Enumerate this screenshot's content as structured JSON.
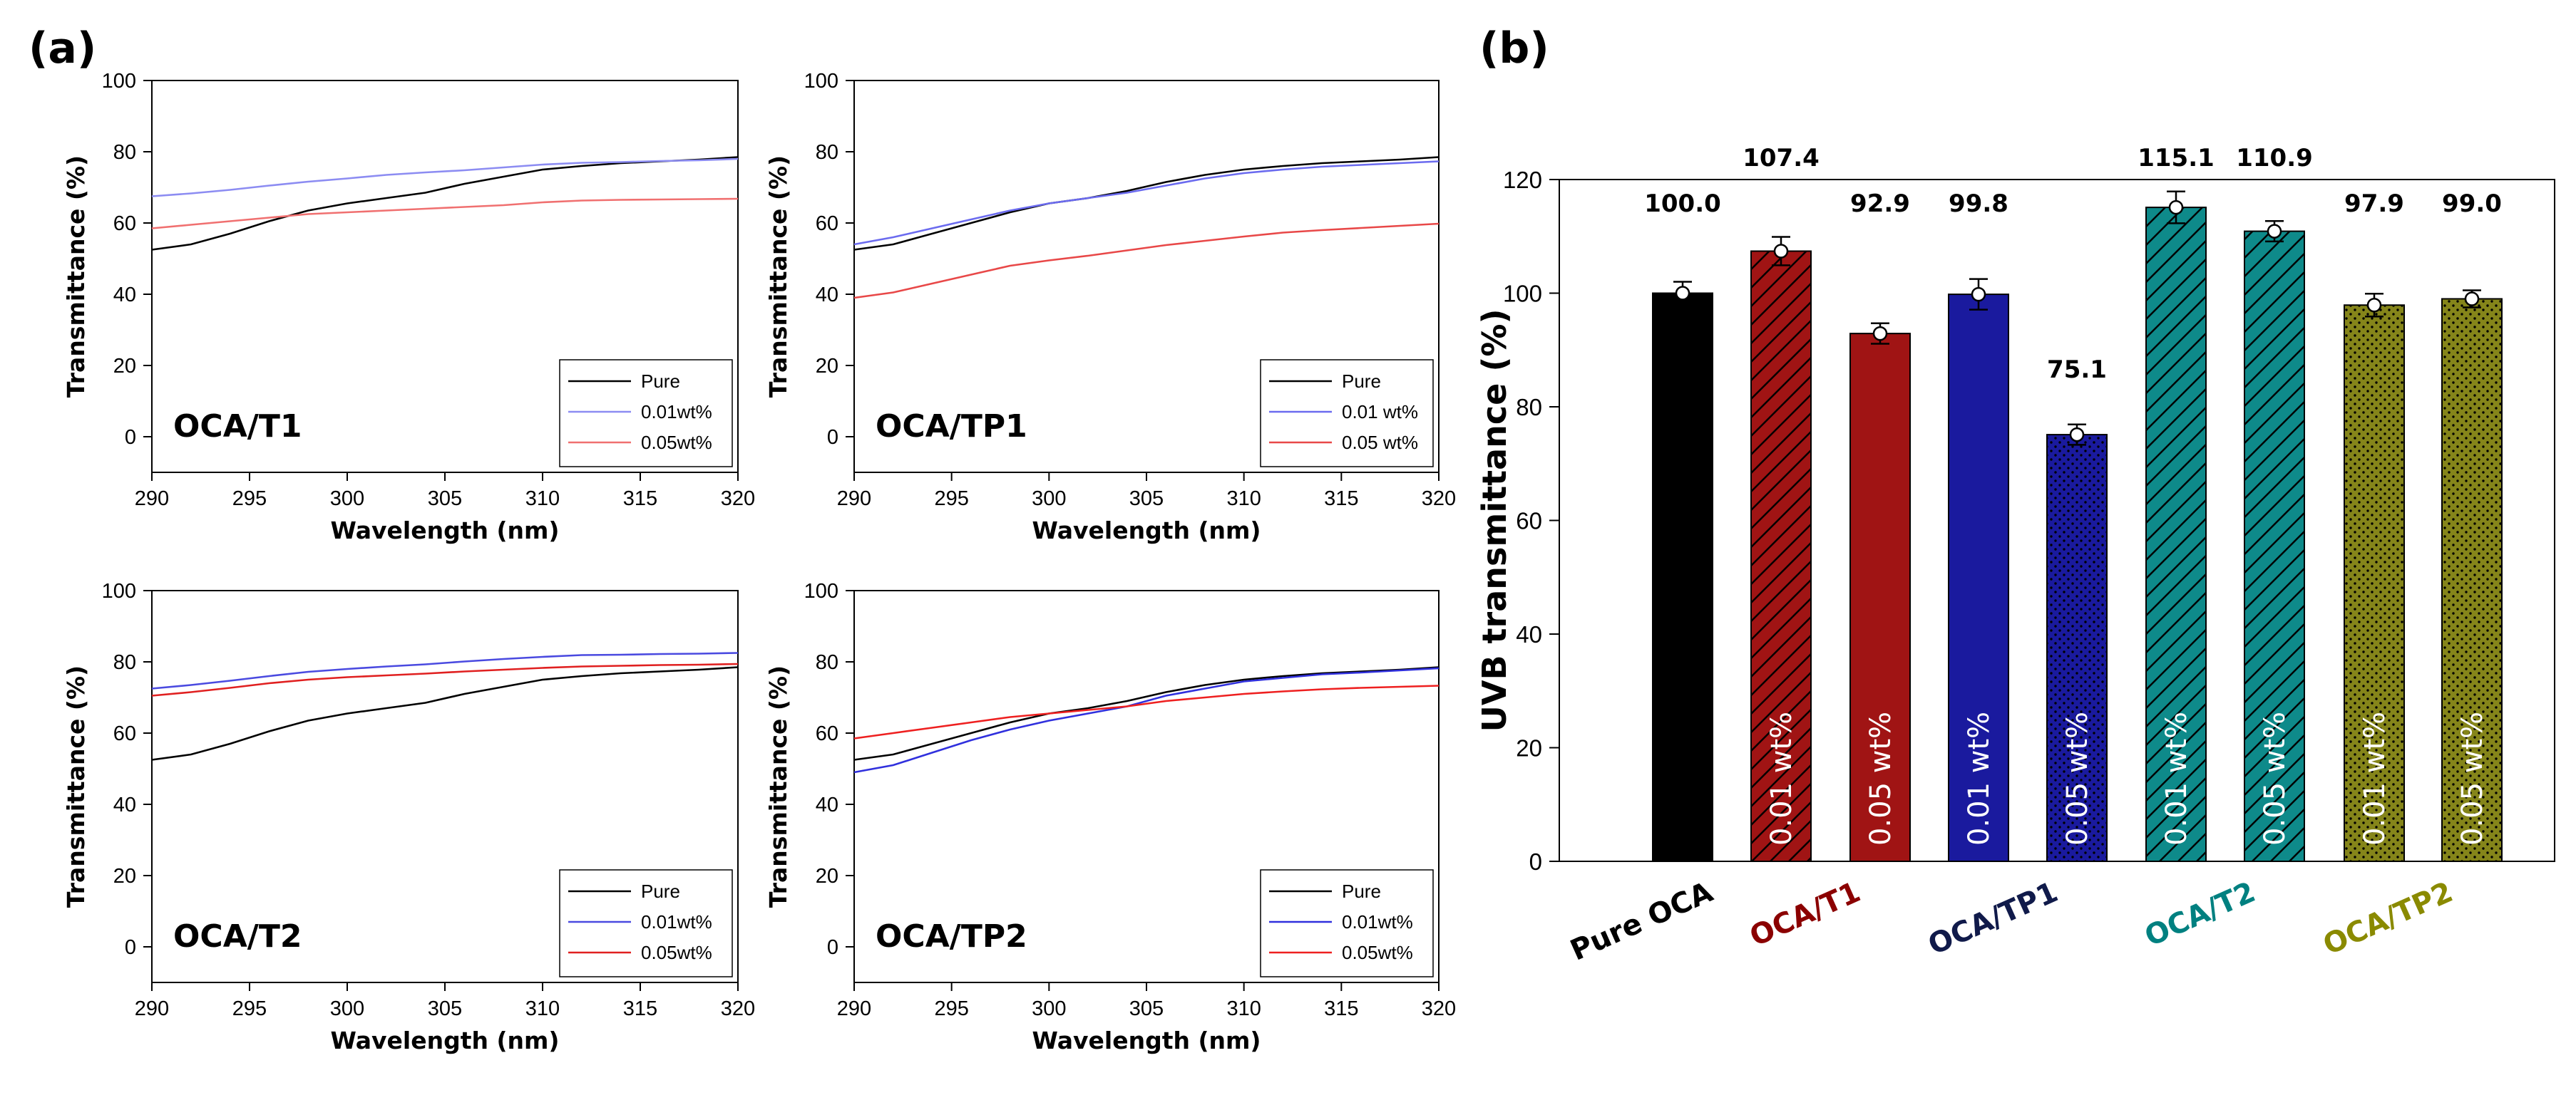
{
  "figure": {
    "panel_a_label": "(a)",
    "panel_b_label": "(b)"
  },
  "chart_data": [
    {
      "type": "line",
      "panel": "a1",
      "sample_label": "OCA/T1",
      "xlabel": "Wavelength (nm)",
      "ylabel": "Transmittance (%)",
      "xlim": [
        290,
        320
      ],
      "ylim": [
        -10,
        100
      ],
      "xticks": [
        290,
        295,
        300,
        305,
        310,
        315,
        320
      ],
      "yticks": [
        0,
        20,
        40,
        60,
        80,
        100
      ],
      "legend_position": "bottom-right",
      "x": [
        290,
        292,
        294,
        296,
        298,
        300,
        302,
        304,
        306,
        308,
        310,
        312,
        314,
        316,
        318,
        320
      ],
      "series": [
        {
          "name": "Pure",
          "color": "#000000",
          "values": [
            52.5,
            54,
            57,
            60.5,
            63.5,
            65.5,
            67,
            68.5,
            71,
            73,
            75,
            76,
            76.8,
            77.3,
            77.8,
            78.5
          ]
        },
        {
          "name": "0.01wt%",
          "color": "#8c8cf2",
          "values": [
            67.5,
            68.3,
            69.3,
            70.5,
            71.6,
            72.5,
            73.5,
            74.2,
            74.8,
            75.6,
            76.4,
            76.9,
            77.1,
            77.4,
            77.6,
            78
          ]
        },
        {
          "name": "0.05wt%",
          "color": "#f07070",
          "values": [
            58.5,
            59.5,
            60.5,
            61.5,
            62.5,
            63,
            63.5,
            64,
            64.5,
            65,
            65.8,
            66.3,
            66.5,
            66.6,
            66.7,
            66.8
          ]
        }
      ]
    },
    {
      "type": "line",
      "panel": "a2",
      "sample_label": "OCA/TP1",
      "xlabel": "Wavelength (nm)",
      "ylabel": "Transmittance (%)",
      "xlim": [
        290,
        320
      ],
      "ylim": [
        -10,
        100
      ],
      "xticks": [
        290,
        295,
        300,
        305,
        310,
        315,
        320
      ],
      "yticks": [
        0,
        20,
        40,
        60,
        80,
        100
      ],
      "legend_position": "bottom-right",
      "x": [
        290,
        292,
        294,
        296,
        298,
        300,
        302,
        304,
        306,
        308,
        310,
        312,
        314,
        316,
        318,
        320
      ],
      "series": [
        {
          "name": "Pure",
          "color": "#000000",
          "values": [
            52.5,
            54,
            57,
            60,
            63,
            65.5,
            67,
            69,
            71.5,
            73.5,
            75,
            76,
            76.8,
            77.3,
            77.8,
            78.5
          ]
        },
        {
          "name": "0.01 wt%",
          "color": "#6b6bef",
          "values": [
            54,
            56,
            58.5,
            61,
            63.5,
            65.5,
            67,
            68.5,
            70.5,
            72.5,
            74,
            75,
            75.8,
            76.3,
            76.8,
            77.3
          ]
        },
        {
          "name": "0.05 wt%",
          "color": "#e84848",
          "values": [
            39,
            40.5,
            43,
            45.5,
            48,
            49.5,
            50.8,
            52.3,
            53.8,
            55,
            56.2,
            57.3,
            58,
            58.6,
            59.2,
            59.8
          ]
        }
      ]
    },
    {
      "type": "line",
      "panel": "a3",
      "sample_label": "OCA/T2",
      "xlabel": "Wavelength (nm)",
      "ylabel": "Transmittance (%)",
      "xlim": [
        290,
        320
      ],
      "ylim": [
        -10,
        100
      ],
      "xticks": [
        290,
        295,
        300,
        305,
        310,
        315,
        320
      ],
      "yticks": [
        0,
        20,
        40,
        60,
        80,
        100
      ],
      "legend_position": "bottom-right",
      "x": [
        290,
        292,
        294,
        296,
        298,
        300,
        302,
        304,
        306,
        308,
        310,
        312,
        314,
        316,
        318,
        320
      ],
      "series": [
        {
          "name": "Pure",
          "color": "#000000",
          "values": [
            52.5,
            54,
            57,
            60.5,
            63.5,
            65.5,
            67,
            68.5,
            71,
            73,
            75,
            76,
            76.8,
            77.3,
            77.8,
            78.5
          ]
        },
        {
          "name": "0.01wt%",
          "color": "#4a4ae0",
          "values": [
            72.5,
            73.5,
            74.7,
            76,
            77.2,
            78,
            78.7,
            79.3,
            80.1,
            80.8,
            81.4,
            81.9,
            82,
            82.2,
            82.3,
            82.5
          ]
        },
        {
          "name": "0.05wt%",
          "color": "#e02020",
          "values": [
            70.5,
            71.5,
            72.7,
            74,
            75,
            75.7,
            76.2,
            76.7,
            77.3,
            77.8,
            78.3,
            78.7,
            78.9,
            79.1,
            79.2,
            79.4
          ]
        }
      ]
    },
    {
      "type": "line",
      "panel": "a4",
      "sample_label": "OCA/TP2",
      "xlabel": "Wavelength (nm)",
      "ylabel": "Transmittance (%)",
      "xlim": [
        290,
        320
      ],
      "ylim": [
        -10,
        100
      ],
      "xticks": [
        290,
        295,
        300,
        305,
        310,
        315,
        320
      ],
      "yticks": [
        0,
        20,
        40,
        60,
        80,
        100
      ],
      "legend_position": "bottom-right",
      "x": [
        290,
        292,
        294,
        296,
        298,
        300,
        302,
        304,
        306,
        308,
        310,
        312,
        314,
        316,
        318,
        320
      ],
      "series": [
        {
          "name": "Pure",
          "color": "#000000",
          "values": [
            52.5,
            54,
            57,
            60,
            63,
            65.5,
            67,
            69,
            71.5,
            73.5,
            75,
            76,
            76.8,
            77.3,
            77.8,
            78.5
          ]
        },
        {
          "name": "0.01wt%",
          "color": "#3030dd",
          "values": [
            49,
            51,
            54.5,
            58,
            61,
            63.5,
            65.5,
            67.5,
            70.5,
            72.5,
            74.5,
            75.5,
            76.5,
            77,
            77.6,
            78.2
          ]
        },
        {
          "name": "0.05wt%",
          "color": "#ee2020",
          "values": [
            58.5,
            60,
            61.5,
            63,
            64.5,
            65.5,
            66.5,
            67.5,
            69,
            70,
            71,
            71.7,
            72.3,
            72.7,
            73,
            73.3
          ]
        }
      ]
    },
    {
      "type": "bar",
      "panel": "b",
      "ylabel": "UVB transmittance (%)",
      "ylim": [
        0,
        120
      ],
      "yticks": [
        0,
        20,
        40,
        60,
        80,
        100,
        120
      ],
      "categories": [
        "Pure OCA",
        "OCA/T1",
        "OCA/TP1",
        "OCA/T2",
        "OCA/TP2"
      ],
      "category_colors": [
        "#000000",
        "#8b0000",
        "#101a4a",
        "#008080",
        "#8a8a00"
      ],
      "bars": [
        {
          "group": "Pure OCA",
          "value": 100.0,
          "error": 2.0,
          "value_label": "100.0",
          "inner_label": "",
          "color": "#000000",
          "pattern": "solid"
        },
        {
          "group": "OCA/T1",
          "value": 107.4,
          "error": 2.5,
          "value_label": "107.4",
          "inner_label": "0.01 wt%",
          "color": "#a01414",
          "pattern": "hatch"
        },
        {
          "group": "OCA/T1",
          "value": 92.9,
          "error": 1.8,
          "value_label": "92.9",
          "inner_label": "0.05 wt%",
          "color": "#a01414",
          "pattern": "solid"
        },
        {
          "group": "OCA/TP1",
          "value": 99.8,
          "error": 2.7,
          "value_label": "99.8",
          "inner_label": "0.01 wt%",
          "color": "#1a1a9e",
          "pattern": "solid"
        },
        {
          "group": "OCA/TP1",
          "value": 75.1,
          "error": 1.8,
          "value_label": "75.1",
          "inner_label": "0.05 wt%",
          "color": "#1a1a9e",
          "pattern": "dots"
        },
        {
          "group": "OCA/T2",
          "value": 115.1,
          "error": 2.8,
          "value_label": "115.1",
          "inner_label": "0.01 wt%",
          "color": "#0e8a8a",
          "pattern": "hatch"
        },
        {
          "group": "OCA/T2",
          "value": 110.9,
          "error": 1.8,
          "value_label": "110.9",
          "inner_label": "0.05 wt%",
          "color": "#0e8a8a",
          "pattern": "hatch"
        },
        {
          "group": "OCA/TP2",
          "value": 97.9,
          "error": 2.0,
          "value_label": "97.9",
          "inner_label": "0.01 wt%",
          "color": "#85851a",
          "pattern": "dots"
        },
        {
          "group": "OCA/TP2",
          "value": 99.0,
          "error": 1.5,
          "value_label": "99.0",
          "inner_label": "0.05 wt%",
          "color": "#85851a",
          "pattern": "dots"
        }
      ]
    }
  ]
}
